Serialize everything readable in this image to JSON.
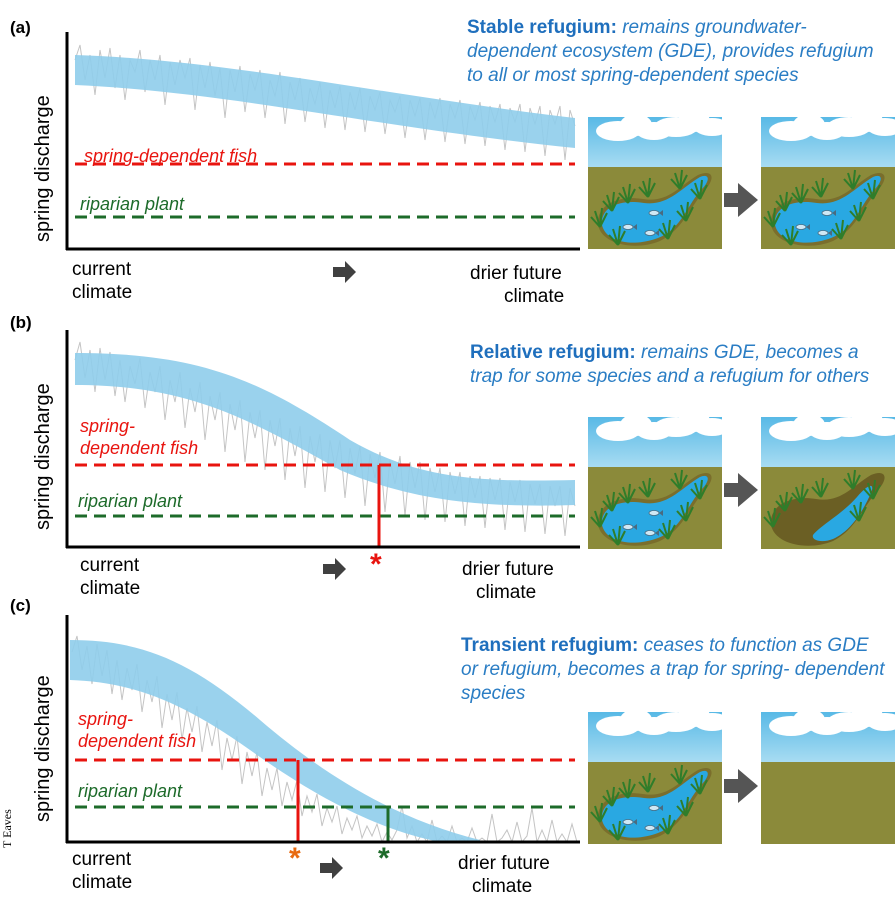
{
  "panels": [
    {
      "label": "(a)",
      "ylabel": "spring discharge",
      "x_start": [
        "current",
        "climate"
      ],
      "x_end": [
        "drier future",
        "climate"
      ],
      "fish_label": "spring-dependent fish",
      "plant_label": "riparian plant",
      "title_bold": "Stable refugium:",
      "title_rest": "remains groundwater-dependent ecosystem (GDE), provides refugium to all or most spring-dependent species",
      "end_scene": "spring-with-fish"
    },
    {
      "label": "(b)",
      "ylabel": "spring discharge",
      "x_start": [
        "current",
        "climate"
      ],
      "x_end": [
        "drier future",
        "climate"
      ],
      "fish_label": [
        "spring-",
        "dependent fish"
      ],
      "plant_label": "riparian plant",
      "title_bold": "Relative refugium:",
      "title_rest": "remains GDE, becomes a trap for some species and a refugium for others",
      "end_scene": "shrunken-spring"
    },
    {
      "label": "(c)",
      "ylabel": "spring discharge",
      "x_start": [
        "current",
        "climate"
      ],
      "x_end": [
        "drier future",
        "climate"
      ],
      "fish_label": [
        "spring-",
        "dependent fish"
      ],
      "plant_label": "riparian plant",
      "title_bold": "Transient refugium:",
      "title_rest": "ceases to function as GDE or refugium, becomes a trap for spring- dependent species",
      "end_scene": "dry-ground"
    }
  ],
  "markers": {
    "asterisk": "*"
  },
  "credit": "T Eaves",
  "colors": {
    "band": "#8fcdeb",
    "fish_line": "#e8140f",
    "plant_line": "#1d6b2a",
    "title": "#1f6fbd",
    "sky": "#6cc3ea",
    "ground": "#8a8a3a",
    "water": "#29a8e2",
    "arrow": "#555555"
  }
}
